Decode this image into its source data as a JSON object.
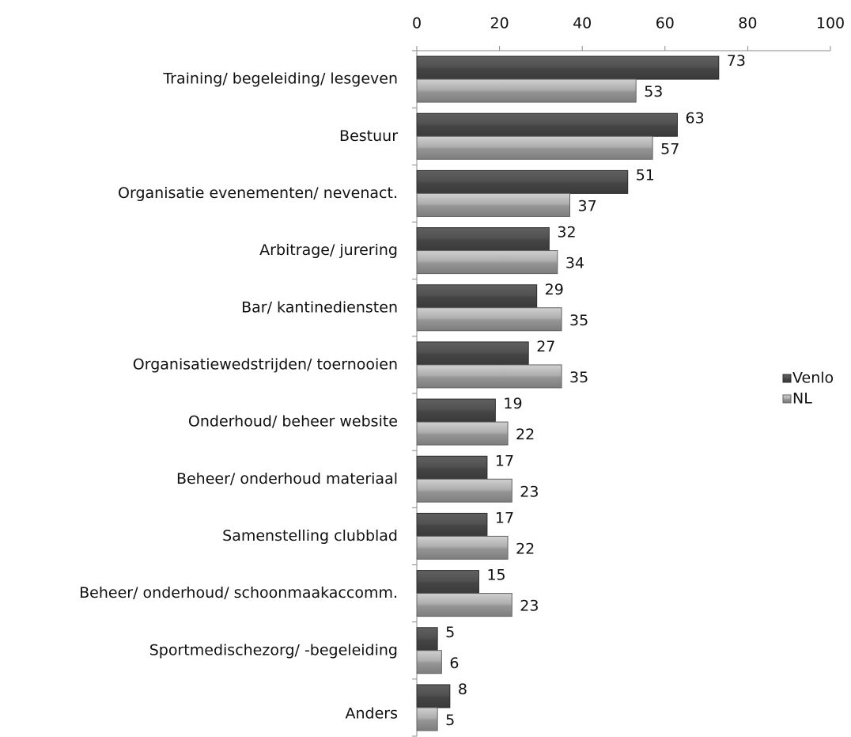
{
  "chart_data": {
    "type": "bar",
    "orientation": "horizontal",
    "categories": [
      "Training/ begeleiding/ lesgeven",
      "Bestuur",
      "Organisatie evenementen/ nevenact.",
      "Arbitrage/ jurering",
      "Bar/ kantinediensten",
      "Organisatiewedstrijden/ toernooien",
      "Onderhoud/ beheer website",
      "Beheer/ onderhoud materiaal",
      "Samenstelling clubblad",
      "Beheer/ onderhoud/ schoonmaakaccomm.",
      "Sportmedischezorg/ -begeleiding",
      "Anders"
    ],
    "series": [
      {
        "name": "Venlo",
        "color": "#4d4d4d",
        "values": [
          73,
          63,
          51,
          32,
          29,
          27,
          19,
          17,
          17,
          15,
          5,
          8
        ]
      },
      {
        "name": "NL",
        "color": "#a6a6a6",
        "values": [
          53,
          57,
          37,
          34,
          35,
          35,
          22,
          23,
          22,
          23,
          6,
          5
        ]
      }
    ],
    "xlim": [
      0,
      100
    ],
    "xticks": [
      0,
      20,
      40,
      60,
      80,
      100
    ],
    "legend": "right"
  }
}
